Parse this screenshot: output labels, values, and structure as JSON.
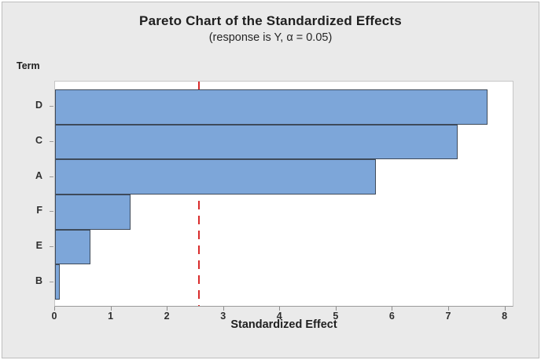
{
  "figure": {
    "title": "Pareto Chart of the Standardized Effects",
    "subtitle": "(response is Y, α = 0.05)",
    "y_axis_title": "Term",
    "x_axis_title": "Standardized Effect"
  },
  "chart_data": {
    "type": "bar",
    "orientation": "horizontal",
    "title": "Pareto Chart of the Standardized Effects",
    "subtitle": "(response is Y, α = 0.05)",
    "xlabel": "Standardized Effect",
    "ylabel": "Term",
    "categories": [
      "D",
      "C",
      "A",
      "F",
      "E",
      "B"
    ],
    "values": [
      7.69,
      7.15,
      5.7,
      1.34,
      0.63,
      0.08
    ],
    "reference_line": 2.56,
    "x_ticks": [
      0,
      1,
      2,
      3,
      4,
      5,
      6,
      7,
      8
    ],
    "xlim": [
      0,
      8.16
    ],
    "grid": false,
    "legend": "none",
    "colors": {
      "bar_fill": "#7da6d9",
      "bar_border": "#3e4a5a",
      "reference_line": "#d92b2b",
      "figure_background": "#eaeaea",
      "plot_background": "#ffffff",
      "text": "#1f1f1f"
    }
  }
}
